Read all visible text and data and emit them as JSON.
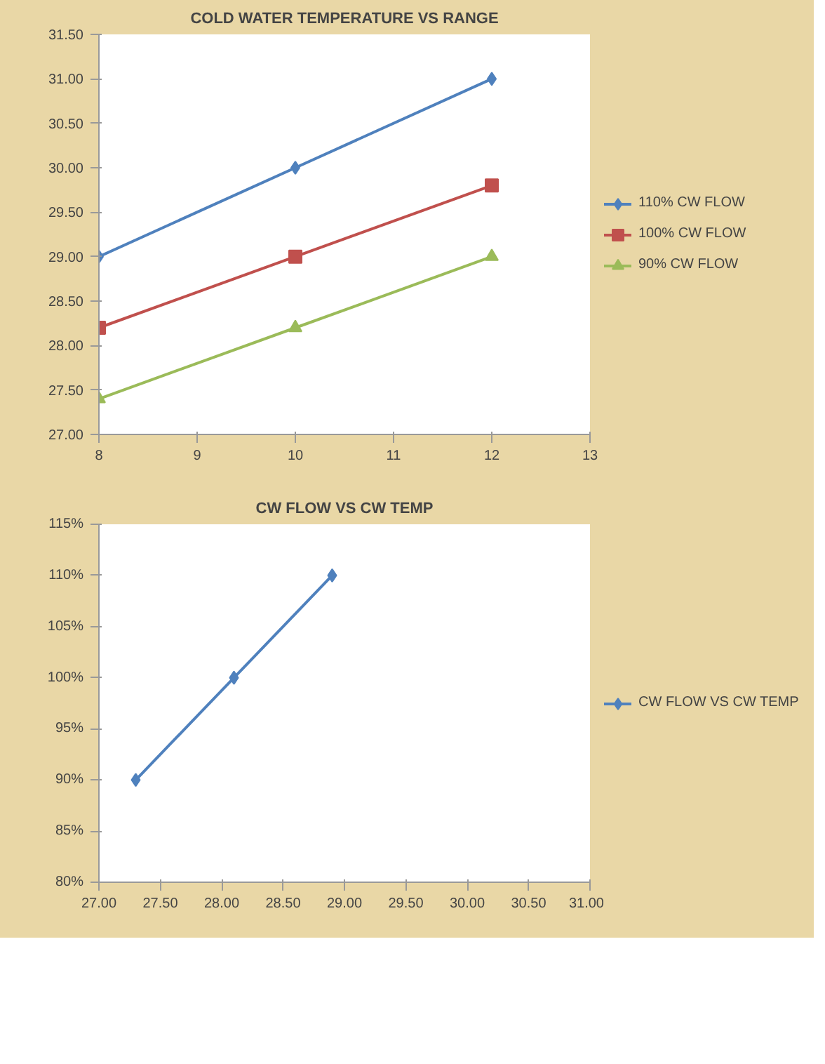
{
  "chart_data": [
    {
      "type": "line",
      "title": "COLD WATER TEMPERATURE VS RANGE",
      "x": [
        8,
        10,
        12
      ],
      "xlim": [
        8,
        13
      ],
      "xticks": [
        8,
        9,
        10,
        11,
        12,
        13
      ],
      "ylim": [
        27,
        31.5
      ],
      "yticks": [
        {
          "value": 27,
          "label": "27.00"
        },
        {
          "value": 27.5,
          "label": "27.50"
        },
        {
          "value": 28,
          "label": "28.00"
        },
        {
          "value": 28.5,
          "label": "28.50"
        },
        {
          "value": 29,
          "label": "29.00"
        },
        {
          "value": 29.5,
          "label": "29.50"
        },
        {
          "value": 30,
          "label": "30.00"
        },
        {
          "value": 30.5,
          "label": "30.50"
        },
        {
          "value": 31,
          "label": "31.00"
        },
        {
          "value": 31.5,
          "label": "31.50"
        }
      ],
      "series": [
        {
          "name": "110% CW FLOW",
          "color": "#4f81bd",
          "marker": "diamond",
          "values": [
            29.0,
            30.0,
            31.0
          ]
        },
        {
          "name": "100% CW FLOW",
          "color": "#c0504d",
          "marker": "square",
          "values": [
            28.2,
            29.0,
            29.8
          ]
        },
        {
          "name": "90% CW FLOW",
          "color": "#9bbb59",
          "marker": "triangle",
          "values": [
            27.4,
            28.2,
            29.0
          ]
        }
      ],
      "grid": false,
      "legend": "right"
    },
    {
      "type": "line",
      "title": "CW FLOW VS CW TEMP",
      "x": [
        27.3,
        28.1,
        28.9
      ],
      "xlim": [
        27,
        31
      ],
      "xticks": [
        {
          "value": 27,
          "label": "27.00"
        },
        {
          "value": 27.5,
          "label": "27.50"
        },
        {
          "value": 28,
          "label": "28.00"
        },
        {
          "value": 28.5,
          "label": "28.50"
        },
        {
          "value": 29,
          "label": "29.00"
        },
        {
          "value": 29.5,
          "label": "29.50"
        },
        {
          "value": 30,
          "label": "30.00"
        },
        {
          "value": 30.5,
          "label": "30.50"
        },
        {
          "value": 31,
          "label": "31.00"
        }
      ],
      "ylim": [
        80,
        115
      ],
      "yticks": [
        {
          "value": 80,
          "label": "80%"
        },
        {
          "value": 85,
          "label": "85%"
        },
        {
          "value": 90,
          "label": "90%"
        },
        {
          "value": 95,
          "label": "95%"
        },
        {
          "value": 100,
          "label": "100%"
        },
        {
          "value": 105,
          "label": "105%"
        },
        {
          "value": 110,
          "label": "110%"
        },
        {
          "value": 115,
          "label": "115%"
        }
      ],
      "series": [
        {
          "name": "CW FLOW VS CW TEMP",
          "color": "#4f81bd",
          "marker": "diamond",
          "values": [
            90,
            100,
            110
          ]
        }
      ],
      "grid": false,
      "legend": "right"
    }
  ]
}
